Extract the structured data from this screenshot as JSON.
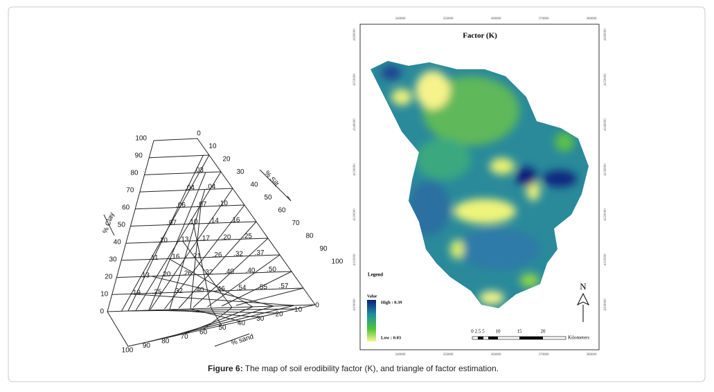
{
  "figure": {
    "caption_label": "Figure 6:",
    "caption_text": " The map of soil erodibility factor (K), and triangle of factor estimation.",
    "triangle": {
      "clay_label": "% Clay",
      "silt_label": "% Silt",
      "sand_label": "% sand",
      "clay_ticks": [
        "100",
        "90",
        "80",
        "70",
        "60",
        "50",
        "40",
        "30",
        "20",
        "10",
        "0"
      ],
      "silt_ticks": [
        "0",
        "10",
        "20",
        "30",
        "40",
        "50",
        "60",
        "70",
        "80",
        "90",
        "100"
      ],
      "sand_ticks": [
        "0",
        "10",
        "20",
        "30",
        "40",
        "50",
        "60",
        "70",
        "80",
        "90",
        "100"
      ],
      "rows": [
        [
          ".03"
        ],
        [
          ".04",
          ".04"
        ],
        [
          ".06",
          ".07",
          ".10"
        ],
        [
          ".07",
          ".10",
          ".14",
          ".16"
        ],
        [
          ".10",
          ".13",
          ".17",
          ".20",
          ".25"
        ],
        [
          ".11",
          ".16",
          ".21",
          ".26",
          ".32",
          ".37"
        ],
        [
          ".13",
          ".20",
          ".26",
          ".32",
          ".40",
          ".40",
          ".50"
        ],
        [
          ".19",
          ".25",
          ".32",
          ".40",
          ".46",
          ".54",
          ".55",
          ".57"
        ]
      ]
    },
    "map": {
      "title": "Factor (K)",
      "legend_title": "Legend",
      "value_title": "Value",
      "high": "High : 0.39",
      "low": "Low : 0.03",
      "scale_labels": [
        "0",
        "2.5",
        "5",
        "10",
        "15",
        "20"
      ],
      "scale_unit": "Kilometers",
      "north": "N",
      "x_labels": [
        "340000",
        "350000",
        "360000",
        "370000",
        "380000"
      ],
      "y_labels": [
        "4160000",
        "4150000",
        "4140000",
        "4130000",
        "4120000",
        "4110000",
        "4100000"
      ]
    }
  }
}
